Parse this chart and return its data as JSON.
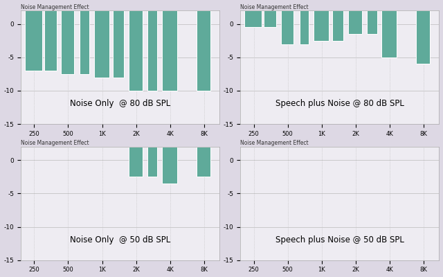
{
  "title": "Noise Management Effect",
  "x_ticks": [
    250,
    500,
    1000,
    2000,
    4000,
    8000
  ],
  "x_tick_labels": [
    "250",
    "500",
    "1K",
    "2K",
    "4K",
    "8K"
  ],
  "ylim": [
    -15,
    2
  ],
  "yticks": [
    0,
    -5,
    -10,
    -15
  ],
  "bar_color": "#5faa9a",
  "bar_edge_color": "white",
  "background_color": "#ddd8e4",
  "plot_bg_color": "#eeecf2",
  "grid_color": "#bbbbbb",
  "top_value": 2,
  "subplots": [
    {
      "label": "Noise Only  @ 80 dB SPL",
      "freqs": [
        250,
        350,
        500,
        700,
        1000,
        1400,
        2000,
        2800,
        4000,
        8000
      ],
      "bottoms": [
        -7.0,
        -7.0,
        -7.5,
        -7.5,
        -8.0,
        -8.0,
        -10.0,
        -10.0,
        -10.0,
        -10.0
      ],
      "widths": [
        100,
        100,
        150,
        150,
        350,
        350,
        650,
        650,
        1400,
        2500
      ]
    },
    {
      "label": "Speech plus Noise @ 80 dB SPL",
      "freqs": [
        250,
        350,
        500,
        700,
        1000,
        1400,
        2000,
        2800,
        4000,
        8000
      ],
      "bottoms": [
        -0.5,
        -0.5,
        -3.0,
        -3.0,
        -2.5,
        -2.5,
        -1.5,
        -1.5,
        -5.0,
        -6.0
      ],
      "widths": [
        100,
        100,
        150,
        150,
        350,
        350,
        650,
        650,
        1400,
        2500
      ]
    },
    {
      "label": "Noise Only  @ 50 dB SPL",
      "freqs": [
        250,
        350,
        500,
        700,
        1000,
        1400,
        2000,
        2800,
        4000,
        8000
      ],
      "bottoms": [
        2.0,
        2.0,
        2.0,
        2.0,
        2.0,
        2.0,
        -2.5,
        -2.5,
        -3.5,
        -2.5
      ],
      "widths": [
        100,
        100,
        150,
        150,
        350,
        350,
        650,
        650,
        1400,
        2500
      ]
    },
    {
      "label": "Speech plus Noise @ 50 dB SPL",
      "freqs": [
        250,
        350,
        500,
        700,
        1000,
        1400,
        2000,
        2800,
        4000,
        8000
      ],
      "bottoms": [
        2.0,
        2.0,
        2.0,
        2.0,
        2.0,
        2.0,
        2.0,
        2.0,
        2.0,
        2.0
      ],
      "widths": [
        100,
        100,
        150,
        150,
        350,
        350,
        650,
        650,
        1400,
        2500
      ]
    }
  ]
}
